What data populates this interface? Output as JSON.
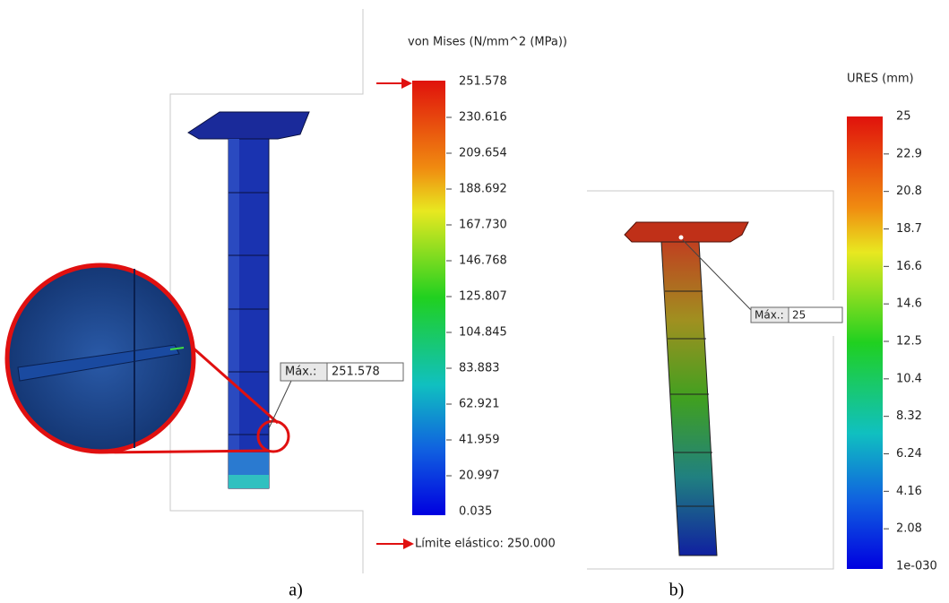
{
  "panel_a": {
    "legend_title": "von Mises (N/mm^2 (MPa))",
    "tick_labels": [
      "251.578",
      "230.616",
      "209.654",
      "188.692",
      "167.730",
      "146.768",
      "125.807",
      "104.845",
      "83.883",
      "62.921",
      "41.959",
      "20.997",
      "0.035"
    ],
    "max_label": "Máx.:",
    "max_value": "251.578",
    "yield_label": "Límite elástico: 250.000",
    "caption": "a)"
  },
  "panel_b": {
    "legend_title": "URES (mm)",
    "tick_labels": [
      "25",
      "22.9",
      "20.8",
      "18.7",
      "16.6",
      "14.6",
      "12.5",
      "10.4",
      "8.32",
      "6.24",
      "4.16",
      "2.08",
      "1e-030"
    ],
    "max_label": "Máx.:",
    "max_value": "25",
    "caption": "b)"
  }
}
